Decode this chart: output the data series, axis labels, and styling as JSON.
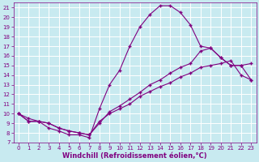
{
  "xlabel": "Windchill (Refroidissement éolien,°C)",
  "bg_color": "#c8eaf0",
  "line_color": "#800080",
  "grid_color": "#ffffff",
  "xlim": [
    -0.5,
    23.5
  ],
  "ylim": [
    7,
    21.5
  ],
  "xticks": [
    0,
    1,
    2,
    3,
    4,
    5,
    6,
    7,
    8,
    9,
    10,
    11,
    12,
    13,
    14,
    15,
    16,
    17,
    18,
    19,
    20,
    21,
    22,
    23
  ],
  "yticks": [
    7,
    8,
    9,
    10,
    11,
    12,
    13,
    14,
    15,
    16,
    17,
    18,
    19,
    20,
    21
  ],
  "line1_x": [
    0,
    1,
    2,
    3,
    4,
    5,
    6,
    7,
    8,
    9,
    10,
    11,
    12,
    13,
    14,
    15,
    16,
    17,
    18,
    19,
    20,
    21,
    22,
    23
  ],
  "line1_y": [
    10.0,
    9.5,
    9.2,
    8.5,
    8.2,
    7.8,
    7.8,
    7.5,
    10.5,
    13.0,
    14.5,
    17.0,
    19.0,
    20.3,
    21.2,
    21.2,
    20.5,
    19.2,
    17.0,
    16.8,
    15.8,
    15.0,
    15.0,
    15.2
  ],
  "line2_x": [
    0,
    1,
    2,
    3,
    4,
    5,
    6,
    7,
    8,
    9,
    10,
    11,
    12,
    13,
    14,
    15,
    16,
    17,
    18,
    19,
    20,
    21,
    22,
    23
  ],
  "line2_y": [
    10.0,
    9.2,
    9.2,
    9.0,
    8.5,
    8.2,
    8.0,
    7.8,
    9.0,
    10.2,
    10.8,
    11.5,
    12.2,
    13.0,
    13.5,
    14.2,
    14.8,
    15.2,
    16.5,
    16.8,
    15.8,
    15.0,
    15.0,
    13.5
  ],
  "line3_x": [
    0,
    1,
    2,
    3,
    4,
    5,
    6,
    7,
    8,
    9,
    10,
    11,
    12,
    13,
    14,
    15,
    16,
    17,
    18,
    19,
    20,
    21,
    22,
    23
  ],
  "line3_y": [
    10.0,
    9.2,
    9.2,
    9.0,
    8.5,
    8.2,
    8.0,
    7.8,
    9.2,
    10.0,
    10.5,
    11.0,
    11.8,
    12.3,
    12.8,
    13.2,
    13.8,
    14.2,
    14.8,
    15.0,
    15.2,
    15.5,
    14.0,
    13.5
  ],
  "marker": "+",
  "markersize": 3,
  "linewidth": 0.8,
  "tick_fontsize": 5,
  "label_fontsize": 6
}
